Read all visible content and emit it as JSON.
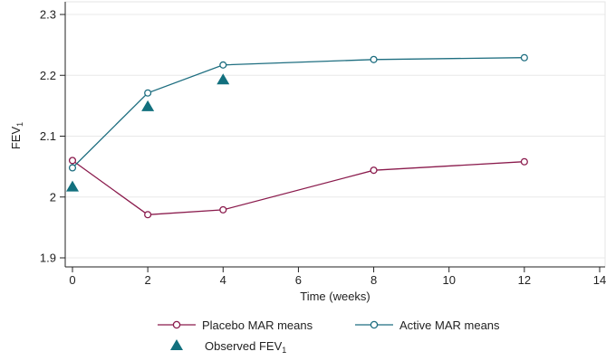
{
  "chart_data": {
    "type": "line",
    "xlabel": "Time (weeks)",
    "ylabel": {
      "main": "FEV",
      "sub": "1"
    },
    "xlim": [
      0,
      14
    ],
    "ylim": [
      1.9,
      2.3
    ],
    "x_ticks": [
      0,
      2,
      4,
      6,
      8,
      10,
      12,
      14
    ],
    "y_ticks": [
      1.9,
      2.0,
      2.1,
      2.2,
      2.3
    ],
    "x_tick_labels": [
      "0",
      "2",
      "4",
      "6",
      "8",
      "10",
      "12",
      "14"
    ],
    "y_tick_labels": [
      "1.9",
      "2",
      "2.1",
      "2.2",
      "2.3"
    ],
    "grid": "horizontal",
    "legend_position": "bottom",
    "series": [
      {
        "name": "Placebo MAR means",
        "color": "#8a1a4c",
        "marker": "hollow-circle",
        "style": "line",
        "x": [
          0,
          2,
          4,
          8,
          12
        ],
        "y": [
          2.06,
          1.971,
          1.979,
          2.044,
          2.058
        ]
      },
      {
        "name": "Active MAR means",
        "color": "#1e6e80",
        "marker": "hollow-circle",
        "style": "line",
        "x": [
          0,
          2,
          4,
          8,
          12
        ],
        "y": [
          2.048,
          2.171,
          2.217,
          2.226,
          2.229
        ]
      },
      {
        "name": {
          "main": "Observed FEV",
          "sub": "1"
        },
        "color": "#12707e",
        "marker": "filled-triangle",
        "style": "markers",
        "x": [
          0,
          2,
          4
        ],
        "y": [
          2.018,
          2.15,
          2.194
        ]
      }
    ]
  }
}
